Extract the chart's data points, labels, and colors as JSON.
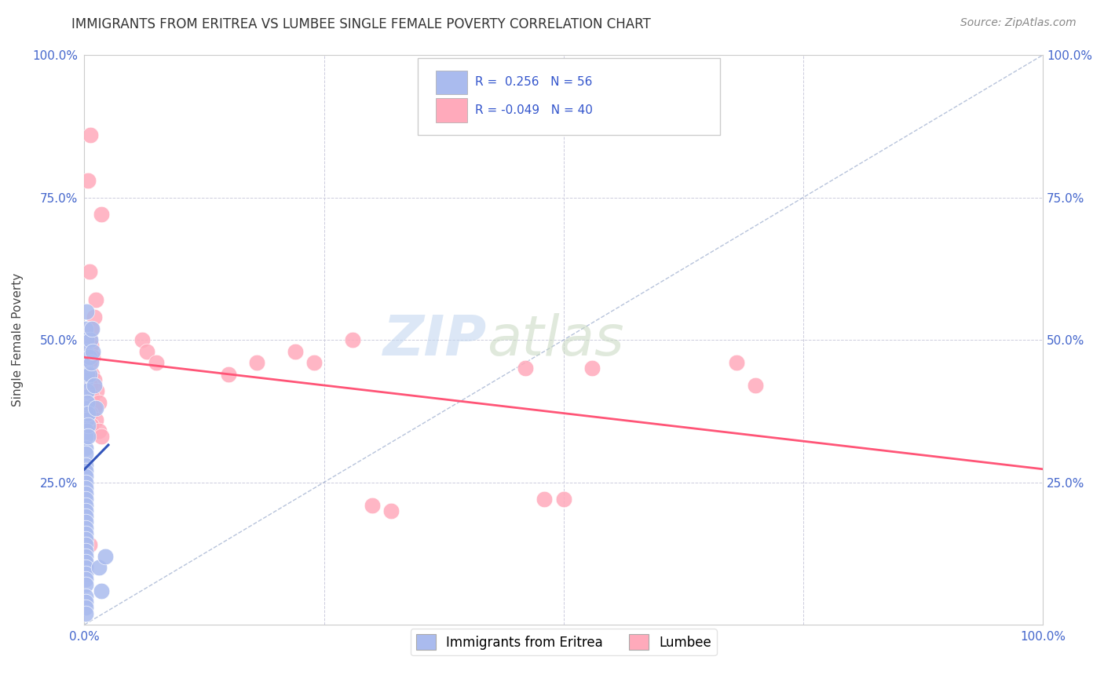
{
  "title": "IMMIGRANTS FROM ERITREA VS LUMBEE SINGLE FEMALE POVERTY CORRELATION CHART",
  "source": "Source: ZipAtlas.com",
  "ylabel": "Single Female Poverty",
  "xlim": [
    0.0,
    1.0
  ],
  "ylim": [
    0.0,
    1.0
  ],
  "background_color": "#ffffff",
  "grid_color": "#ccccdd",
  "eritrea_color": "#aabbee",
  "lumbee_color": "#ffaabb",
  "eritrea_line_color": "#3355bb",
  "lumbee_line_color": "#ff5577",
  "diagonal_color": "#99aacc",
  "eritrea_points": [
    [
      0.001,
      0.52
    ],
    [
      0.002,
      0.55
    ],
    [
      0.002,
      0.5
    ],
    [
      0.001,
      0.48
    ],
    [
      0.001,
      0.45
    ],
    [
      0.001,
      0.43
    ],
    [
      0.001,
      0.4
    ],
    [
      0.001,
      0.38
    ],
    [
      0.002,
      0.36
    ],
    [
      0.002,
      0.34
    ],
    [
      0.001,
      0.33
    ],
    [
      0.001,
      0.31
    ],
    [
      0.001,
      0.3
    ],
    [
      0.001,
      0.28
    ],
    [
      0.001,
      0.27
    ],
    [
      0.001,
      0.26
    ],
    [
      0.001,
      0.25
    ],
    [
      0.001,
      0.24
    ],
    [
      0.001,
      0.23
    ],
    [
      0.001,
      0.22
    ],
    [
      0.001,
      0.21
    ],
    [
      0.001,
      0.2
    ],
    [
      0.001,
      0.19
    ],
    [
      0.001,
      0.18
    ],
    [
      0.001,
      0.17
    ],
    [
      0.001,
      0.16
    ],
    [
      0.001,
      0.15
    ],
    [
      0.001,
      0.14
    ],
    [
      0.001,
      0.13
    ],
    [
      0.001,
      0.12
    ],
    [
      0.001,
      0.11
    ],
    [
      0.001,
      0.1
    ],
    [
      0.001,
      0.09
    ],
    [
      0.001,
      0.08
    ],
    [
      0.001,
      0.07
    ],
    [
      0.001,
      0.05
    ],
    [
      0.001,
      0.04
    ],
    [
      0.001,
      0.03
    ],
    [
      0.001,
      0.02
    ],
    [
      0.003,
      0.44
    ],
    [
      0.003,
      0.41
    ],
    [
      0.003,
      0.39
    ],
    [
      0.004,
      0.37
    ],
    [
      0.004,
      0.35
    ],
    [
      0.004,
      0.33
    ],
    [
      0.005,
      0.47
    ],
    [
      0.005,
      0.44
    ],
    [
      0.006,
      0.5
    ],
    [
      0.007,
      0.46
    ],
    [
      0.008,
      0.52
    ],
    [
      0.009,
      0.48
    ],
    [
      0.01,
      0.42
    ],
    [
      0.012,
      0.38
    ],
    [
      0.015,
      0.1
    ],
    [
      0.018,
      0.06
    ],
    [
      0.022,
      0.12
    ]
  ],
  "lumbee_points": [
    [
      0.006,
      0.86
    ],
    [
      0.004,
      0.78
    ],
    [
      0.018,
      0.72
    ],
    [
      0.005,
      0.62
    ],
    [
      0.012,
      0.57
    ],
    [
      0.01,
      0.54
    ],
    [
      0.007,
      0.52
    ],
    [
      0.005,
      0.5
    ],
    [
      0.007,
      0.49
    ],
    [
      0.009,
      0.47
    ],
    [
      0.005,
      0.46
    ],
    [
      0.008,
      0.44
    ],
    [
      0.01,
      0.43
    ],
    [
      0.006,
      0.42
    ],
    [
      0.013,
      0.41
    ],
    [
      0.008,
      0.4
    ],
    [
      0.015,
      0.39
    ],
    [
      0.01,
      0.38
    ],
    [
      0.006,
      0.37
    ],
    [
      0.012,
      0.36
    ],
    [
      0.007,
      0.35
    ],
    [
      0.015,
      0.34
    ],
    [
      0.018,
      0.33
    ],
    [
      0.005,
      0.14
    ],
    [
      0.06,
      0.5
    ],
    [
      0.065,
      0.48
    ],
    [
      0.075,
      0.46
    ],
    [
      0.15,
      0.44
    ],
    [
      0.18,
      0.46
    ],
    [
      0.22,
      0.48
    ],
    [
      0.24,
      0.46
    ],
    [
      0.28,
      0.5
    ],
    [
      0.46,
      0.45
    ],
    [
      0.48,
      0.22
    ],
    [
      0.5,
      0.22
    ],
    [
      0.53,
      0.45
    ],
    [
      0.3,
      0.21
    ],
    [
      0.32,
      0.2
    ],
    [
      0.68,
      0.46
    ],
    [
      0.7,
      0.42
    ]
  ]
}
